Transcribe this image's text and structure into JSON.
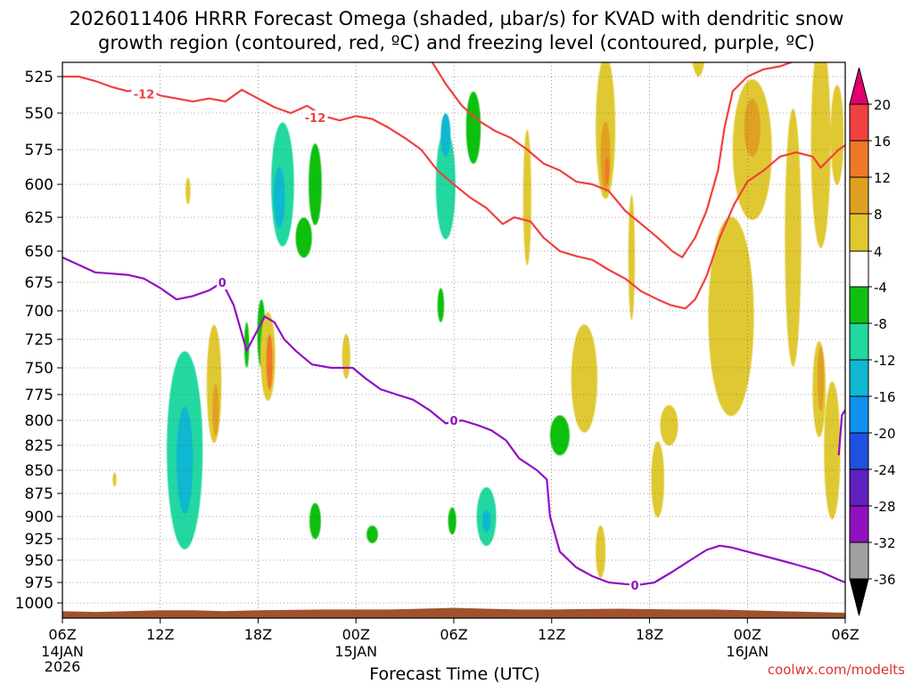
{
  "chart_data": {
    "type": "heatmap",
    "title": "2026011406 HRRR Forecast Omega (shaded, µbar/s) for KVAD with dendritic snow",
    "subtitle": "growth region (contoured, red, ºC) and freezing level (contoured, purple, ºC)",
    "xlabel": "Forecast Time (UTC)",
    "credit": "coolwx.com/modelts",
    "x_ticks": [
      {
        "h": 0,
        "top": "06Z",
        "mid": "14JAN",
        "bot": "2026"
      },
      {
        "h": 6,
        "top": "12Z",
        "mid": "",
        "bot": ""
      },
      {
        "h": 12,
        "top": "18Z",
        "mid": "",
        "bot": ""
      },
      {
        "h": 18,
        "top": "00Z",
        "mid": "15JAN",
        "bot": ""
      },
      {
        "h": 24,
        "top": "06Z",
        "mid": "",
        "bot": ""
      },
      {
        "h": 30,
        "top": "12Z",
        "mid": "",
        "bot": ""
      },
      {
        "h": 36,
        "top": "18Z",
        "mid": "",
        "bot": ""
      },
      {
        "h": 42,
        "top": "00Z",
        "mid": "16JAN",
        "bot": ""
      },
      {
        "h": 48,
        "top": "06Z",
        "mid": "",
        "bot": ""
      }
    ],
    "x_range_hours": [
      0,
      48
    ],
    "y_levels_mb": [
      525,
      550,
      575,
      600,
      625,
      650,
      675,
      700,
      725,
      750,
      775,
      800,
      825,
      850,
      875,
      900,
      925,
      950,
      975,
      1000
    ],
    "colorbar": {
      "labels": [
        "20",
        "16",
        "12",
        "8",
        "4",
        "-4",
        "-8",
        "-12",
        "-16",
        "-20",
        "-24",
        "-28",
        "-32",
        "-36"
      ],
      "label_values": [
        20,
        16,
        12,
        8,
        4,
        -4,
        -8,
        -12,
        -16,
        -20,
        -24,
        -28,
        -32,
        -36
      ],
      "colors": [
        "#e0006e",
        "#f04040",
        "#f07828",
        "#e0a020",
        "#e0c830",
        "#ffffff",
        "#10c010",
        "#20d8a0",
        "#10b8d0",
        "#1090f0",
        "#2050e0",
        "#6020c0",
        "#9010c0",
        "#a0a0a0",
        "#000000"
      ]
    },
    "omega_blobs": [
      {
        "h": 13.5,
        "p": 600,
        "w": 0.7,
        "hgt": 90,
        "v": -8
      },
      {
        "h": 13.3,
        "p": 610,
        "w": 0.35,
        "hgt": 45,
        "v": -12
      },
      {
        "h": 15.5,
        "p": 600,
        "w": 0.4,
        "hgt": 60,
        "v": -6
      },
      {
        "h": 14.8,
        "p": 640,
        "w": 0.5,
        "hgt": 30,
        "v": -5
      },
      {
        "h": 23.5,
        "p": 600,
        "w": 0.6,
        "hgt": 80,
        "v": -8
      },
      {
        "h": 23.5,
        "p": 565,
        "w": 0.3,
        "hgt": 30,
        "v": -12
      },
      {
        "h": 25.2,
        "p": 560,
        "w": 0.45,
        "hgt": 50,
        "v": -6
      },
      {
        "h": 7.5,
        "p": 830,
        "w": 1.1,
        "hgt": 200,
        "v": -8
      },
      {
        "h": 7.5,
        "p": 840,
        "w": 0.5,
        "hgt": 110,
        "v": -12
      },
      {
        "h": 12.2,
        "p": 720,
        "w": 0.25,
        "hgt": 60,
        "v": -6
      },
      {
        "h": 11.3,
        "p": 730,
        "w": 0.15,
        "hgt": 40,
        "v": -5
      },
      {
        "h": 15.5,
        "p": 905,
        "w": 0.35,
        "hgt": 40,
        "v": -6
      },
      {
        "h": 19.0,
        "p": 920,
        "w": 0.35,
        "hgt": 20,
        "v": -6
      },
      {
        "h": 23.2,
        "p": 695,
        "w": 0.2,
        "hgt": 30,
        "v": -5
      },
      {
        "h": 23.9,
        "p": 905,
        "w": 0.25,
        "hgt": 30,
        "v": -6
      },
      {
        "h": 26.0,
        "p": 900,
        "w": 0.6,
        "hgt": 65,
        "v": -8
      },
      {
        "h": 26.0,
        "p": 905,
        "w": 0.25,
        "hgt": 25,
        "v": -12
      },
      {
        "h": 30.5,
        "p": 815,
        "w": 0.6,
        "hgt": 40,
        "v": -6
      },
      {
        "h": 33.3,
        "p": 560,
        "w": 0.6,
        "hgt": 100,
        "v": 6
      },
      {
        "h": 33.3,
        "p": 580,
        "w": 0.3,
        "hgt": 50,
        "v": 10
      },
      {
        "h": 33.4,
        "p": 590,
        "w": 0.15,
        "hgt": 20,
        "v": 14
      },
      {
        "h": 42.3,
        "p": 575,
        "w": 1.2,
        "hgt": 100,
        "v": 6
      },
      {
        "h": 42.3,
        "p": 560,
        "w": 0.5,
        "hgt": 40,
        "v": 10
      },
      {
        "h": 44.8,
        "p": 640,
        "w": 0.5,
        "hgt": 200,
        "v": 6
      },
      {
        "h": 46.5,
        "p": 570,
        "w": 0.6,
        "hgt": 150,
        "v": 6
      },
      {
        "h": 47.2,
        "p": 830,
        "w": 0.5,
        "hgt": 140,
        "v": 6
      },
      {
        "h": 46.4,
        "p": 770,
        "w": 0.4,
        "hgt": 90,
        "v": 6
      },
      {
        "h": 46.5,
        "p": 760,
        "w": 0.2,
        "hgt": 60,
        "v": 10
      },
      {
        "h": 39.0,
        "p": 480,
        "w": 0.6,
        "hgt": 90,
        "v": 6
      },
      {
        "h": 41.0,
        "p": 705,
        "w": 1.4,
        "hgt": 170,
        "v": 6
      },
      {
        "h": 47.5,
        "p": 565,
        "w": 0.4,
        "hgt": 70,
        "v": 6
      },
      {
        "h": 9.3,
        "p": 765,
        "w": 0.45,
        "hgt": 110,
        "v": 6
      },
      {
        "h": 9.4,
        "p": 790,
        "w": 0.2,
        "hgt": 50,
        "v": 10
      },
      {
        "h": 12.6,
        "p": 740,
        "w": 0.45,
        "hgt": 80,
        "v": 6
      },
      {
        "h": 12.7,
        "p": 745,
        "w": 0.2,
        "hgt": 50,
        "v": 12
      },
      {
        "h": 17.4,
        "p": 740,
        "w": 0.25,
        "hgt": 40,
        "v": 6
      },
      {
        "h": 7.7,
        "p": 605,
        "w": 0.15,
        "hgt": 20,
        "v": 5
      },
      {
        "h": 3.2,
        "p": 860,
        "w": 0.12,
        "hgt": 15,
        "v": 5
      },
      {
        "h": 28.5,
        "p": 610,
        "w": 0.25,
        "hgt": 100,
        "v": 6
      },
      {
        "h": 34.9,
        "p": 655,
        "w": 0.2,
        "hgt": 100,
        "v": 6
      },
      {
        "h": 32.0,
        "p": 760,
        "w": 0.8,
        "hgt": 100,
        "v": 6
      },
      {
        "h": 37.2,
        "p": 805,
        "w": 0.55,
        "hgt": 40,
        "v": 6
      },
      {
        "h": 36.5,
        "p": 860,
        "w": 0.4,
        "hgt": 80,
        "v": 6
      },
      {
        "h": 33.0,
        "p": 940,
        "w": 0.3,
        "hgt": 60,
        "v": 6
      }
    ],
    "freezing_level": {
      "label": "0",
      "points": [
        [
          0,
          655
        ],
        [
          1,
          661
        ],
        [
          2,
          667
        ],
        [
          3,
          668
        ],
        [
          4,
          669
        ],
        [
          5,
          672
        ],
        [
          6,
          680
        ],
        [
          7,
          690
        ],
        [
          8,
          687
        ],
        [
          9,
          682
        ],
        [
          9.8,
          675
        ],
        [
          10.5,
          695
        ],
        [
          11.3,
          735
        ],
        [
          12.4,
          705
        ],
        [
          13.0,
          710
        ],
        [
          13.6,
          725
        ],
        [
          14.3,
          735
        ],
        [
          15.3,
          747
        ],
        [
          16.5,
          750
        ],
        [
          17.8,
          750
        ],
        [
          18.6,
          760
        ],
        [
          19.5,
          770
        ],
        [
          20.5,
          775
        ],
        [
          21.5,
          780
        ],
        [
          22.5,
          790
        ],
        [
          23.5,
          803
        ],
        [
          24.5,
          800
        ],
        [
          25.5,
          805
        ],
        [
          26.3,
          810
        ],
        [
          27.2,
          820
        ],
        [
          28.0,
          838
        ],
        [
          29.1,
          850
        ],
        [
          29.7,
          860
        ],
        [
          29.9,
          900
        ],
        [
          30.5,
          940
        ],
        [
          31.5,
          958
        ],
        [
          32.5,
          968
        ],
        [
          33.5,
          975
        ],
        [
          34.5,
          977
        ],
        [
          35.3,
          978
        ],
        [
          36.3,
          975
        ],
        [
          37.4,
          963
        ],
        [
          38.5,
          950
        ],
        [
          39.5,
          938
        ],
        [
          40.3,
          933
        ],
        [
          41.0,
          935
        ],
        [
          42.0,
          940
        ],
        [
          43.0,
          945
        ],
        [
          44.0,
          950
        ],
        [
          45.0,
          955
        ],
        [
          46.5,
          963
        ],
        [
          47.6,
          972
        ],
        [
          48.0,
          975
        ]
      ],
      "points_b": [
        [
          47.6,
          835
        ],
        [
          47.8,
          795
        ],
        [
          48.0,
          790
        ]
      ],
      "label_positions": [
        [
          9.8,
          675
        ],
        [
          24.0,
          800
        ],
        [
          35.1,
          978
        ]
      ]
    },
    "dgz_top": {
      "label": "-12",
      "points": [
        [
          0,
          525
        ],
        [
          1,
          525
        ],
        [
          2,
          528
        ],
        [
          3,
          532
        ],
        [
          4,
          535
        ],
        [
          5,
          533
        ],
        [
          6,
          538
        ],
        [
          7,
          540
        ],
        [
          8,
          542
        ],
        [
          9,
          540
        ],
        [
          10,
          542
        ],
        [
          11,
          534
        ],
        [
          12,
          540
        ],
        [
          13,
          546
        ],
        [
          14,
          550
        ],
        [
          15,
          545
        ],
        [
          16,
          552
        ],
        [
          17,
          555
        ],
        [
          18,
          552
        ],
        [
          19,
          554
        ],
        [
          20,
          560
        ],
        [
          21,
          567
        ],
        [
          22,
          575
        ],
        [
          23,
          590
        ],
        [
          24,
          600
        ],
        [
          25,
          610
        ],
        [
          26,
          618
        ],
        [
          27,
          630
        ],
        [
          27.7,
          625
        ],
        [
          28.7,
          628
        ],
        [
          29.5,
          640
        ],
        [
          30.5,
          650
        ],
        [
          31.5,
          654
        ],
        [
          32.5,
          657
        ],
        [
          33.5,
          665
        ],
        [
          34.5,
          672
        ],
        [
          35.5,
          683
        ],
        [
          36.5,
          690
        ],
        [
          37.3,
          695
        ],
        [
          38.2,
          698
        ],
        [
          38.8,
          690
        ],
        [
          39.5,
          670
        ],
        [
          40.3,
          640
        ],
        [
          41.2,
          615
        ],
        [
          42.0,
          598
        ],
        [
          43.0,
          590
        ],
        [
          44.0,
          580
        ],
        [
          45.0,
          577
        ],
        [
          46.0,
          580
        ],
        [
          46.5,
          588
        ],
        [
          47.0,
          582
        ],
        [
          47.6,
          575
        ],
        [
          48.0,
          572
        ]
      ],
      "label_positions": [
        [
          5.0,
          537
        ],
        [
          15.5,
          553
        ]
      ]
    },
    "dgz_bottom": {
      "points": [
        [
          21.5,
          490
        ],
        [
          22.5,
          512
        ],
        [
          23.5,
          530
        ],
        [
          24.5,
          545
        ],
        [
          25.5,
          555
        ],
        [
          26.5,
          562
        ],
        [
          27.5,
          567
        ],
        [
          28.5,
          575
        ],
        [
          29.5,
          585
        ],
        [
          30.5,
          590
        ],
        [
          31.5,
          598
        ],
        [
          32.5,
          600
        ],
        [
          33.5,
          605
        ],
        [
          34.5,
          620
        ],
        [
          35.5,
          630
        ],
        [
          36.5,
          640
        ],
        [
          37.4,
          650
        ],
        [
          38.0,
          655
        ],
        [
          38.8,
          640
        ],
        [
          39.5,
          620
        ],
        [
          40.2,
          590
        ],
        [
          40.6,
          560
        ],
        [
          41.1,
          535
        ],
        [
          42.0,
          525
        ],
        [
          43.0,
          520
        ],
        [
          44.0,
          518
        ],
        [
          45.0,
          514
        ]
      ]
    },
    "terrain": {
      "color": "#a0522d",
      "top_mb": [
        [
          0,
          1010
        ],
        [
          2,
          1011
        ],
        [
          4,
          1010
        ],
        [
          6,
          1009
        ],
        [
          8,
          1009
        ],
        [
          10,
          1010
        ],
        [
          12,
          1009
        ],
        [
          16,
          1008
        ],
        [
          18,
          1008
        ],
        [
          20,
          1008
        ],
        [
          22,
          1007
        ],
        [
          24,
          1006
        ],
        [
          26,
          1007
        ],
        [
          28,
          1008
        ],
        [
          30,
          1008
        ],
        [
          34,
          1007
        ],
        [
          38,
          1008
        ],
        [
          40,
          1008
        ],
        [
          42,
          1009
        ],
        [
          44,
          1010
        ],
        [
          46,
          1011
        ],
        [
          48,
          1012
        ]
      ]
    }
  }
}
